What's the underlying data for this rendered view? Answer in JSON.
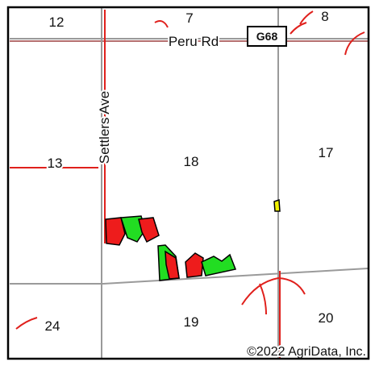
{
  "sections": [
    {
      "label": "12"
    },
    {
      "label": "7"
    },
    {
      "label": "8"
    },
    {
      "label": "13"
    },
    {
      "label": "18"
    },
    {
      "label": "17"
    },
    {
      "label": "24"
    },
    {
      "label": "19"
    },
    {
      "label": "20"
    }
  ],
  "roads": {
    "peru": "Peru Rd",
    "settlers": "Settlers Ave",
    "highway": "G68"
  },
  "copyright": "©2022 AgriData, Inc."
}
